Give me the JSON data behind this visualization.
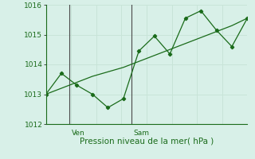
{
  "xlabel": "Pression niveau de la mer( hPa )",
  "bg_color": "#d8f0e8",
  "grid_color": "#c8e4d8",
  "line_color": "#1a6b1a",
  "text_color": "#1a6b1a",
  "ylim": [
    1012,
    1016
  ],
  "yticks": [
    1012,
    1013,
    1014,
    1015,
    1016
  ],
  "xlim": [
    0,
    13
  ],
  "y_jagged": [
    1013.0,
    1013.7,
    1013.3,
    1013.0,
    1012.55,
    1012.85,
    1014.45,
    1014.95,
    1014.35,
    1015.55,
    1015.8,
    1015.15,
    1014.6,
    1015.55
  ],
  "y_smooth": [
    1013.0,
    1013.2,
    1013.4,
    1013.6,
    1013.75,
    1013.9,
    1014.1,
    1014.3,
    1014.5,
    1014.7,
    1014.9,
    1015.1,
    1015.3,
    1015.55
  ],
  "vline_x_ven": 1.5,
  "vline_x_sam": 5.5,
  "vline_color": "#4a4a4a",
  "ven_label": "Ven",
  "sam_label": "Sam"
}
